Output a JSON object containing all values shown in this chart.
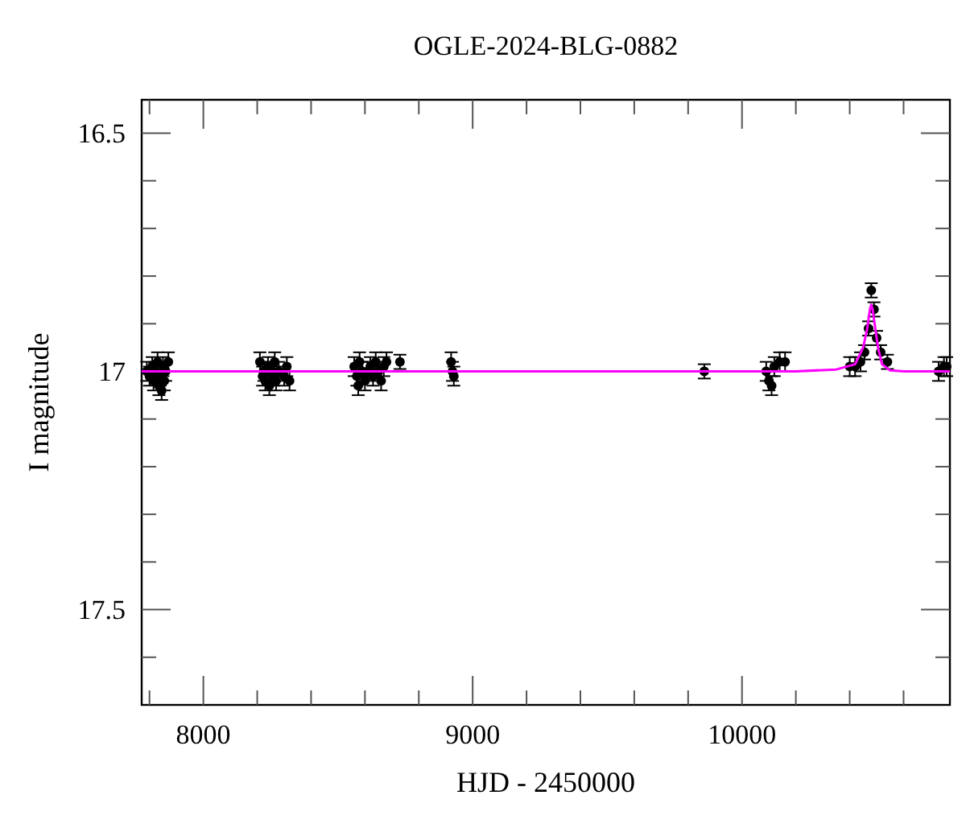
{
  "chart_data": {
    "type": "scatter",
    "title": "OGLE-2024-BLG-0882",
    "xlabel": "HJD - 2450000",
    "ylabel": "I magnitude",
    "xlim": [
      7771,
      10772
    ],
    "ylim": [
      17.7,
      16.43
    ],
    "xticks": [
      {
        "value": 7800,
        "label": null
      },
      8000,
      {
        "value": 8200,
        "label": null
      },
      {
        "value": 8400,
        "label": null
      },
      {
        "value": 8600,
        "label": null
      },
      {
        "value": 8800,
        "label": null
      },
      9000,
      {
        "value": 9200,
        "label": null
      },
      {
        "value": 9400,
        "label": null
      },
      {
        "value": 9600,
        "label": null
      },
      {
        "value": 9800,
        "label": null
      },
      10000,
      {
        "value": 10200,
        "label": null
      },
      {
        "value": 10400,
        "label": null
      },
      {
        "value": 10600,
        "label": null
      }
    ],
    "yticks": [
      {
        "value": 16.5,
        "label": "16.5"
      },
      {
        "value": 16.6,
        "label": null
      },
      {
        "value": 16.7,
        "label": null
      },
      {
        "value": 16.8,
        "label": null
      },
      {
        "value": 16.9,
        "label": null
      },
      {
        "value": 17,
        "label": "17"
      },
      {
        "value": 17.1,
        "label": null
      },
      {
        "value": 17.2,
        "label": null
      },
      {
        "value": 17.3,
        "label": null
      },
      {
        "value": 17.4,
        "label": null
      },
      {
        "value": 17.5,
        "label": "17.5"
      },
      {
        "value": 17.6,
        "label": null
      }
    ],
    "grid": false,
    "marker": "circle",
    "series": [
      {
        "color": "#000000",
        "x": [
          7790,
          7800,
          7810,
          7815,
          7820,
          7830,
          7835,
          7840,
          7845,
          7850,
          7855,
          7860,
          7870,
          8210,
          8220,
          8225,
          8230,
          8240,
          8245,
          8250,
          8260,
          8265,
          8270,
          8280,
          8300,
          8310,
          8320,
          8560,
          8570,
          8575,
          8580,
          8590,
          8600,
          8610,
          8620,
          8630,
          8640,
          8650,
          8660,
          8670,
          8680,
          8730,
          8920,
          8925,
          8930,
          9860,
          10090,
          10100,
          10110,
          10120,
          10140,
          10160,
          10400,
          10420,
          10440,
          10455,
          10470,
          10480,
          10490,
          10500,
          10515,
          10540,
          10730,
          10750,
          10760
        ],
        "values": [
          17.0,
          17.01,
          16.99,
          17.02,
          17.0,
          16.98,
          17.03,
          17.01,
          17.04,
          16.99,
          17.02,
          17.0,
          16.98,
          16.98,
          17.01,
          17.0,
          17.02,
          16.99,
          17.03,
          17.0,
          17.01,
          16.98,
          17.02,
          17.0,
          17.01,
          16.99,
          17.02,
          16.99,
          17.01,
          17.03,
          16.98,
          17.0,
          17.02,
          17.0,
          16.99,
          17.01,
          16.98,
          17.0,
          17.02,
          16.99,
          16.98,
          16.98,
          16.98,
          17.0,
          17.01,
          17.0,
          17.0,
          17.02,
          17.03,
          16.99,
          16.98,
          16.98,
          16.99,
          16.99,
          16.98,
          16.96,
          16.91,
          16.83,
          16.87,
          16.93,
          16.96,
          16.98,
          17.0,
          16.99,
          16.99
        ],
        "errors": [
          0.02,
          0.02,
          0.02,
          0.02,
          0.02,
          0.02,
          0.02,
          0.02,
          0.02,
          0.02,
          0.02,
          0.02,
          0.02,
          0.02,
          0.02,
          0.02,
          0.02,
          0.02,
          0.02,
          0.02,
          0.02,
          0.02,
          0.02,
          0.02,
          0.02,
          0.02,
          0.02,
          0.02,
          0.02,
          0.02,
          0.02,
          0.02,
          0.02,
          0.02,
          0.02,
          0.02,
          0.02,
          0.02,
          0.02,
          0.02,
          0.02,
          0.015,
          0.02,
          0.02,
          0.02,
          0.015,
          0.02,
          0.02,
          0.02,
          0.02,
          0.02,
          0.02,
          0.02,
          0.02,
          0.02,
          0.015,
          0.015,
          0.015,
          0.015,
          0.015,
          0.015,
          0.015,
          0.02,
          0.02,
          0.02
        ]
      },
      {
        "type": "line",
        "color": "#ff00ff",
        "marker": "none",
        "x": [
          7771,
          10200,
          10350,
          10420,
          10450,
          10465,
          10475,
          10480,
          10485,
          10495,
          10505,
          10520,
          10550,
          10600,
          10772
        ],
        "values": [
          17.0,
          17.0,
          16.996,
          16.985,
          16.95,
          16.91,
          16.87,
          16.86,
          16.87,
          16.91,
          16.95,
          16.985,
          16.998,
          17.0,
          17.0
        ]
      }
    ]
  }
}
